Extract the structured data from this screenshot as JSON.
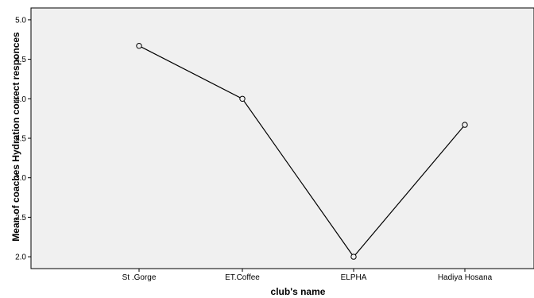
{
  "chart_data": {
    "type": "line",
    "xlabel": "club's name",
    "ylabel": "Mean of coaches Hydration correct responces",
    "categories": [
      "St .Gorge",
      "ET.Coffee",
      "ELPHA",
      "Hadiya Hosana"
    ],
    "series": [
      {
        "values": [
          4.67,
          4.0,
          2.0,
          3.67
        ]
      }
    ],
    "ylim": [
      1.85,
      5.15
    ],
    "yticks": [
      "2.0",
      "2.5",
      "3.0",
      "3.5",
      "4.0",
      "4.5",
      "5.0"
    ],
    "grid": false,
    "markers": "open-circle",
    "colors": {
      "plot_background": "#f0f0f0",
      "line": "#000000",
      "axis": "#000000"
    }
  }
}
